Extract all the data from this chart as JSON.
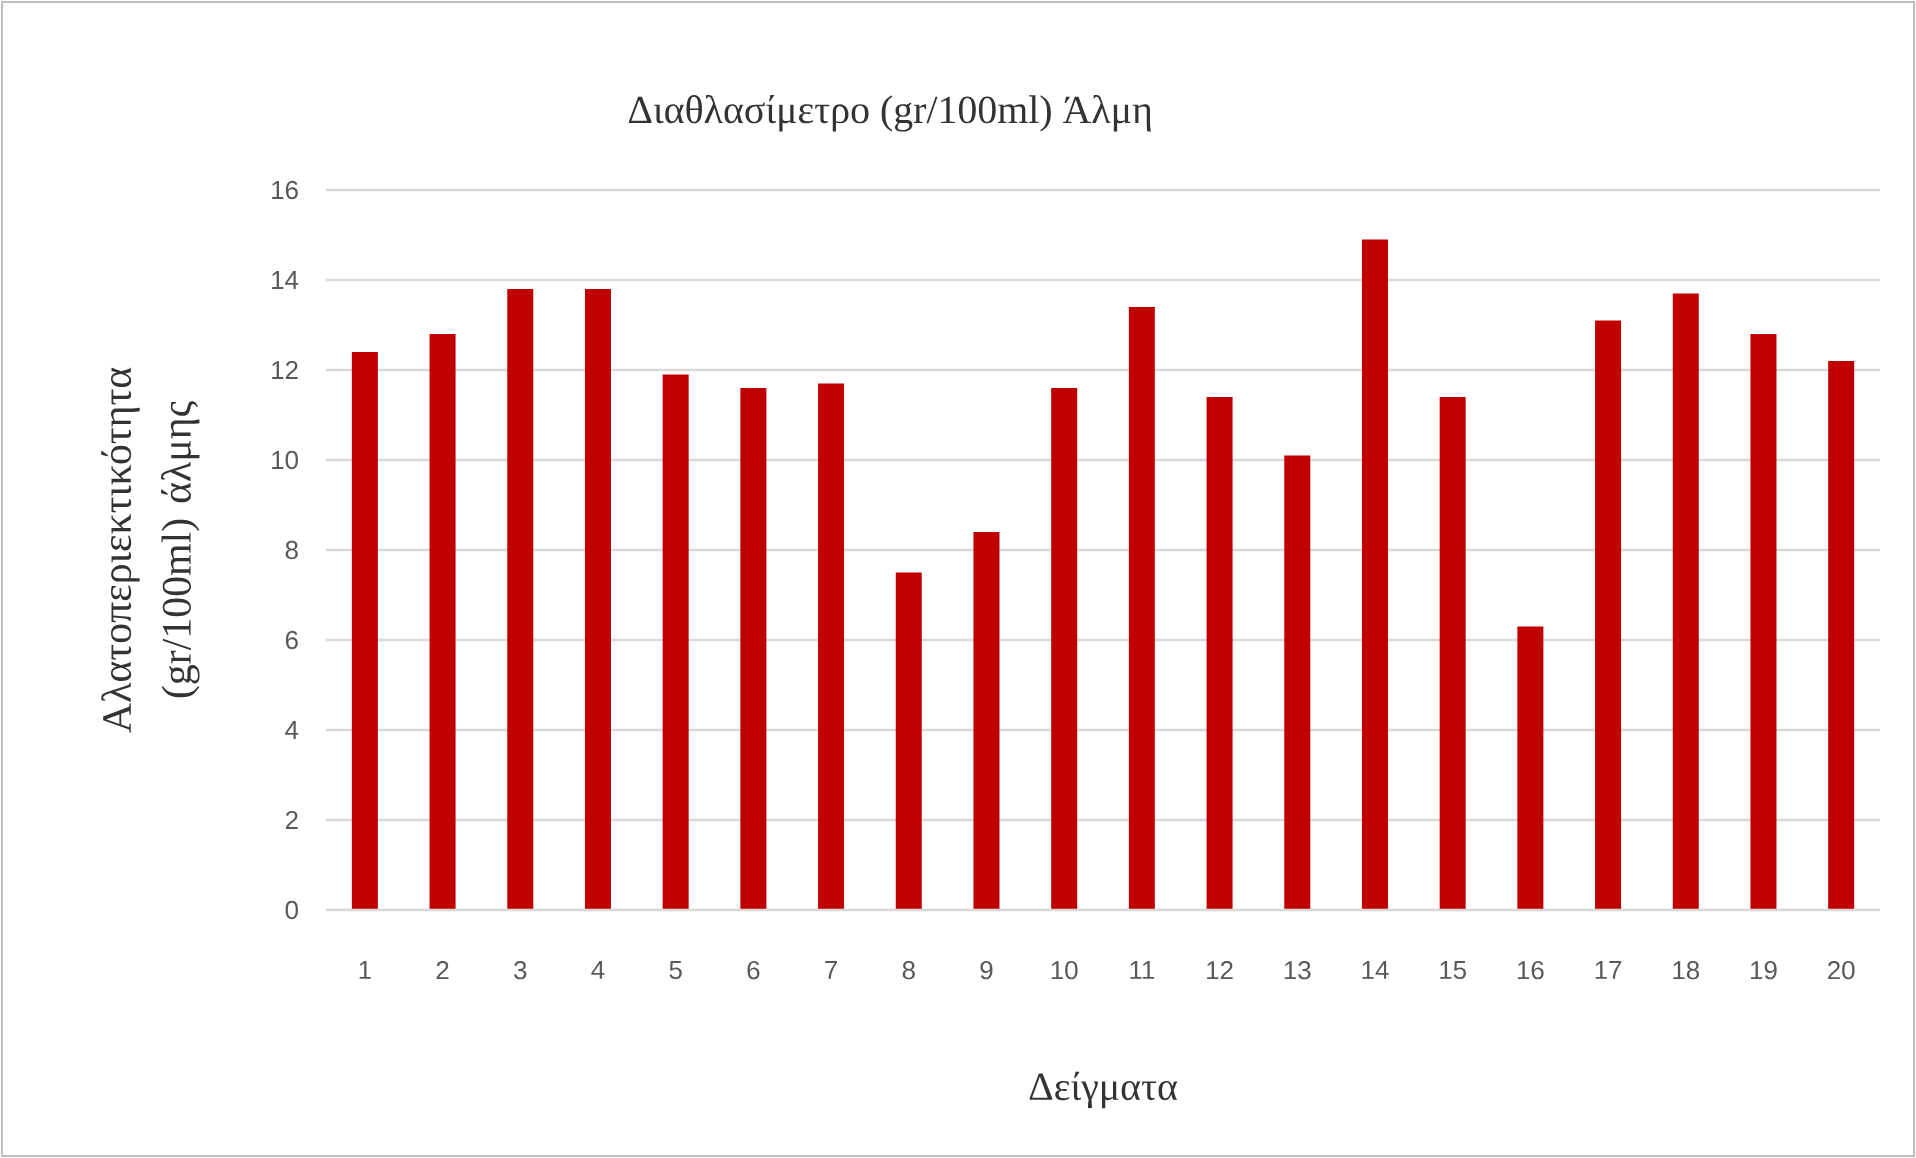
{
  "chart_data": {
    "type": "bar",
    "title": "Διαθλασίμετρο (gr/100ml) Άλμη",
    "xlabel": "Δείγματα",
    "ylabel": "Αλατοπεριεκτικότητα (gr/100ml) άλμης",
    "categories": [
      "1",
      "2",
      "3",
      "4",
      "5",
      "6",
      "7",
      "8",
      "9",
      "10",
      "11",
      "12",
      "13",
      "14",
      "15",
      "16",
      "17",
      "18",
      "19",
      "20"
    ],
    "values": [
      12.4,
      12.8,
      13.8,
      13.8,
      11.9,
      11.6,
      11.7,
      7.5,
      8.4,
      11.6,
      13.4,
      11.4,
      10.1,
      14.9,
      11.4,
      6.3,
      13.1,
      13.7,
      12.8,
      12.2
    ],
    "color": "#c00000",
    "ylim": [
      0,
      16
    ],
    "yticks": [
      0,
      2,
      4,
      6,
      8,
      10,
      12,
      14,
      16
    ],
    "grid": "y"
  }
}
